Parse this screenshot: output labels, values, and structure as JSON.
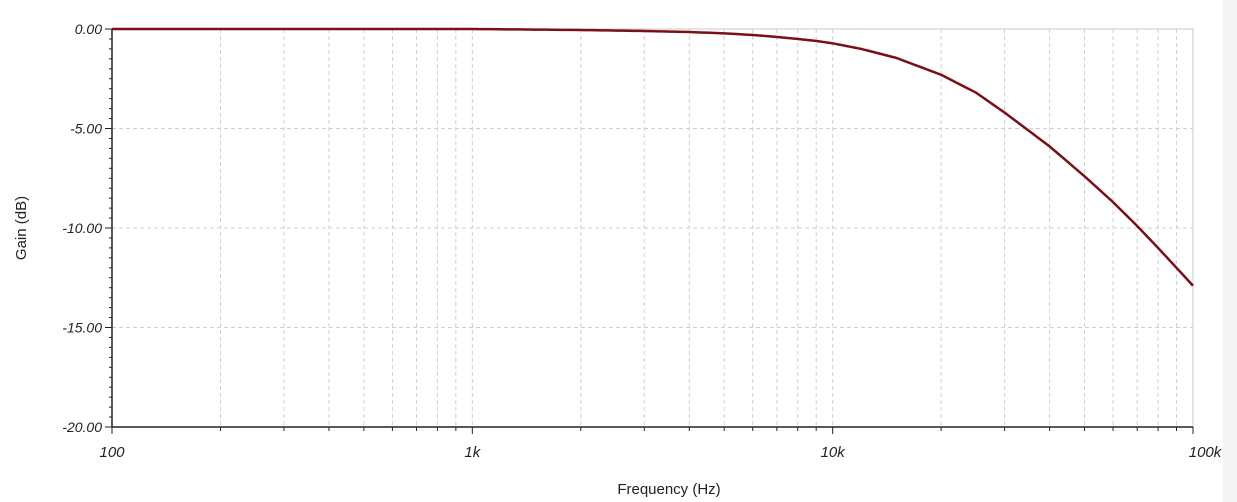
{
  "chart_data": {
    "type": "line",
    "xlabel": "Frequency (Hz)",
    "ylabel": "Gain (dB)",
    "x_scale": "log",
    "xlim": [
      100,
      100000
    ],
    "ylim": [
      -20,
      0
    ],
    "x_ticks": [
      {
        "value": 100,
        "label": "100"
      },
      {
        "value": 1000,
        "label": "1k"
      },
      {
        "value": 10000,
        "label": "10k"
      },
      {
        "value": 100000,
        "label": "100k"
      }
    ],
    "y_ticks": [
      {
        "value": 0,
        "label": "0.00"
      },
      {
        "value": -5,
        "label": "-5.00"
      },
      {
        "value": -10,
        "label": "-10.00"
      },
      {
        "value": -15,
        "label": "-15.00"
      },
      {
        "value": -20,
        "label": "-20.00"
      }
    ],
    "grid": true,
    "series": [
      {
        "color": "#7a1016",
        "x": [
          100,
          200,
          500,
          1000,
          2000,
          3000,
          4000,
          5000,
          6000,
          7000,
          8000,
          9000,
          10000,
          12000,
          15000,
          20000,
          25000,
          30000,
          40000,
          50000,
          60000,
          70000,
          80000,
          90000,
          100000
        ],
        "y": [
          0,
          0,
          0,
          0,
          -0.05,
          -0.1,
          -0.15,
          -0.22,
          -0.3,
          -0.4,
          -0.5,
          -0.6,
          -0.72,
          -1.0,
          -1.45,
          -2.3,
          -3.2,
          -4.2,
          -5.9,
          -7.4,
          -8.7,
          -9.9,
          -11.0,
          -12.0,
          -12.9
        ]
      }
    ]
  }
}
